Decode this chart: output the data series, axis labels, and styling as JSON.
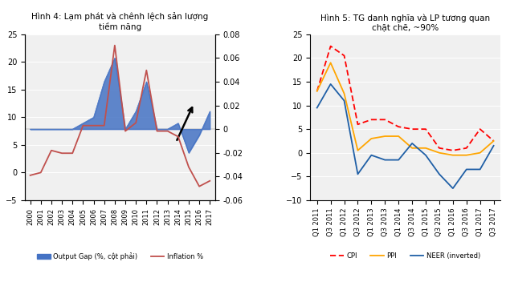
{
  "fig4": {
    "title": "Hình 4: Lạm phát và chênh lệch sản lượng\ntiềm năng",
    "years": [
      "2000",
      "2001",
      "2002",
      "2003",
      "2004",
      "2005",
      "2006",
      "2007",
      "2008",
      "2009",
      "2010",
      "2011",
      "2012",
      "2013",
      "2014",
      "2015",
      "2016",
      "2017"
    ],
    "output_gap": [
      0.0,
      0.0,
      0.0,
      0.0,
      0.0,
      0.005,
      0.01,
      0.04,
      0.06,
      0.0,
      0.015,
      0.04,
      0.0,
      0.0,
      0.005,
      -0.02,
      -0.005,
      0.015
    ],
    "inflation": [
      -0.5,
      0.0,
      4.0,
      3.5,
      3.5,
      8.5,
      8.5,
      8.5,
      23.0,
      7.5,
      9.0,
      18.5,
      7.5,
      7.5,
      6.5,
      1.0,
      -2.5,
      -1.5
    ],
    "bar_color": "#4472C4",
    "line_color": "#C0504D",
    "left_ylim": [
      -5,
      25
    ],
    "right_ylim": [
      -0.06,
      0.08
    ],
    "left_yticks": [
      -5,
      0,
      5,
      10,
      15,
      20,
      25
    ],
    "right_yticks": [
      -0.06,
      -0.04,
      -0.02,
      0,
      0.02,
      0.04,
      0.06,
      0.08
    ],
    "legend_labels": [
      "Output Gap (%, cột phải)",
      "Inflation %"
    ],
    "background_color": "#f0f0f0"
  },
  "fig5": {
    "title": "Hình 5: TG danh nghĩa và LP tương quan\nchặt chẽ, ~90%",
    "quarters": [
      "Q1 2011",
      "Q3 2011",
      "Q1 2012",
      "Q3 2012",
      "Q1 2013",
      "Q3 2013",
      "Q1 2014",
      "Q3 2014",
      "Q1 2015",
      "Q3 2015",
      "Q1 2016",
      "Q3 2016",
      "Q1 2017",
      "Q3 2017"
    ],
    "cpi": [
      13.0,
      22.5,
      20.5,
      6.0,
      7.0,
      7.0,
      5.5,
      5.0,
      5.0,
      1.0,
      0.5,
      1.0,
      5.0,
      2.5
    ],
    "ppi": [
      13.0,
      19.0,
      12.5,
      0.5,
      3.0,
      3.5,
      3.5,
      1.0,
      1.0,
      0.0,
      -0.5,
      -0.5,
      0.0,
      2.5
    ],
    "neer": [
      9.5,
      14.5,
      11.0,
      -4.5,
      -0.5,
      -1.5,
      -1.5,
      2.0,
      -0.5,
      -4.5,
      -7.5,
      -3.5,
      -3.5,
      1.5
    ],
    "cpi_color": "#FF0000",
    "ppi_color": "#FFA500",
    "neer_color": "#1F5FA6",
    "ylim": [
      -10,
      25
    ],
    "yticks": [
      -10,
      -5,
      0,
      5,
      10,
      15,
      20,
      25
    ],
    "legend_labels": [
      "CPI",
      "PPI",
      "NEER (inverted)"
    ],
    "background_color": "#f0f0f0"
  }
}
